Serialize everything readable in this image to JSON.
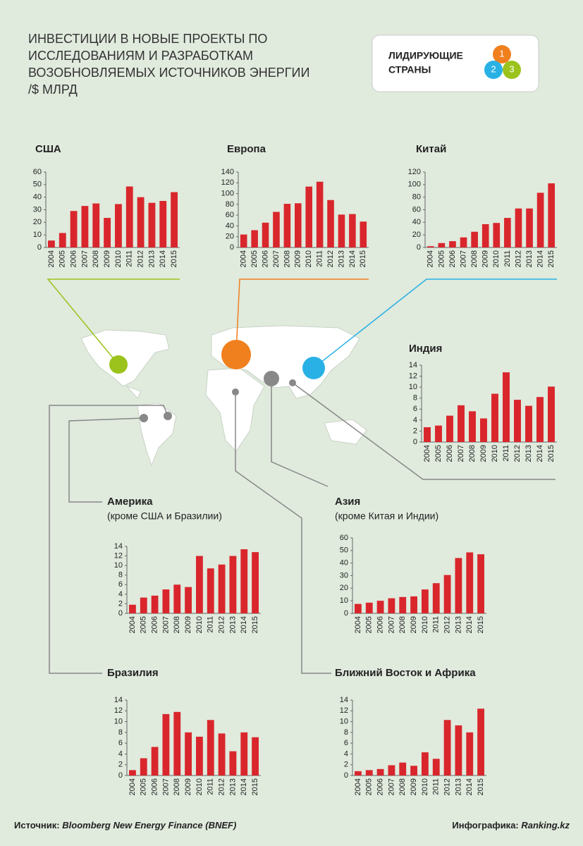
{
  "header": {
    "title_lines": [
      "ИНВЕСТИЦИИ В НОВЫЕ ПРОЕКТЫ ПО",
      "ИССЛЕДОВАНИЯМ И РАЗРАБОТКАМ",
      "ВОЗОБНОВЛЯЕМЫХ ИСТОЧНИКОВ ЭНЕРГИИ",
      "/$ МЛРД"
    ],
    "legend_lines": [
      "ЛИДИРУЮЩИЕ",
      "СТРАНЫ"
    ],
    "ranks": [
      "1",
      "2",
      "3"
    ]
  },
  "footer": {
    "source_label": "Источник:",
    "source": "Bloomberg New Energy Finance (BNEF)",
    "credit_label": "Инфографика:",
    "credit": "Ranking.kz"
  },
  "chart_data": [
    {
      "type": "bar",
      "title": "США",
      "categories": [
        "2004",
        "2005",
        "2006",
        "2007",
        "2008",
        "2009",
        "2010",
        "2011",
        "2012",
        "2013",
        "2014",
        "2015"
      ],
      "values": [
        5.5,
        11.5,
        29,
        33,
        35,
        23.5,
        34.5,
        48.5,
        40,
        35.5,
        37,
        44
      ],
      "color": "#d9262c",
      "ylim": [
        0,
        60
      ],
      "yticks": [
        0,
        10,
        20,
        30,
        40,
        50,
        60
      ]
    },
    {
      "type": "bar",
      "title": "Европа",
      "categories": [
        "2004",
        "2005",
        "2006",
        "2007",
        "2008",
        "2009",
        "2010",
        "2011",
        "2012",
        "2013",
        "2014",
        "2015"
      ],
      "values": [
        24,
        32,
        46,
        66,
        81,
        82,
        113,
        122,
        88,
        61,
        62,
        48
      ],
      "color": "#d9262c",
      "ylim": [
        0,
        140
      ],
      "yticks": [
        0,
        20,
        40,
        60,
        80,
        100,
        120,
        140
      ]
    },
    {
      "type": "bar",
      "title": "Китай",
      "categories": [
        "2004",
        "2005",
        "2006",
        "2007",
        "2008",
        "2009",
        "2010",
        "2011",
        "2012",
        "2013",
        "2014",
        "2015"
      ],
      "values": [
        2,
        7,
        10,
        16,
        25,
        37,
        39,
        47,
        62,
        62,
        87,
        102
      ],
      "color": "#d9262c",
      "ylim": [
        0,
        120
      ],
      "yticks": [
        0,
        20,
        40,
        60,
        80,
        100,
        120
      ]
    },
    {
      "type": "bar",
      "title": "Индия",
      "categories": [
        "2004",
        "2005",
        "2006",
        "2007",
        "2008",
        "2009",
        "2010",
        "2011",
        "2012",
        "2013",
        "2014",
        "2015"
      ],
      "values": [
        2.7,
        3,
        4.8,
        6.7,
        5.6,
        4.3,
        8.8,
        12.7,
        7.7,
        6.6,
        8.2,
        10.1
      ],
      "color": "#d9262c",
      "ylim": [
        0,
        14
      ],
      "yticks": [
        0,
        2,
        4,
        6,
        8,
        10,
        12,
        14
      ]
    },
    {
      "type": "bar",
      "title": "Америка",
      "subtitle": "(кроме США и Бразилии)",
      "categories": [
        "2004",
        "2005",
        "2006",
        "2007",
        "2008",
        "2009",
        "2010",
        "2011",
        "2012",
        "2013",
        "2014",
        "2015"
      ],
      "values": [
        1.8,
        3.3,
        3.7,
        5,
        6,
        5.5,
        12,
        9.4,
        10.2,
        12,
        13.4,
        12.8
      ],
      "color": "#d9262c",
      "ylim": [
        0,
        14
      ],
      "yticks": [
        0,
        2,
        4,
        6,
        8,
        10,
        12,
        14
      ]
    },
    {
      "type": "bar",
      "title": "Азия",
      "subtitle": "(кроме Китая и Индии)",
      "categories": [
        "2004",
        "2005",
        "2006",
        "2007",
        "2008",
        "2009",
        "2010",
        "2011",
        "2012",
        "2013",
        "2014",
        "2015"
      ],
      "values": [
        7.5,
        8.5,
        10,
        12,
        13,
        13.5,
        19,
        24,
        30.5,
        44,
        48.5,
        47
      ],
      "color": "#d9262c",
      "ylim": [
        0,
        60
      ],
      "yticks": [
        0,
        10,
        20,
        30,
        40,
        50,
        60
      ]
    },
    {
      "type": "bar",
      "title": "Бразилия",
      "categories": [
        "2004",
        "2005",
        "2006",
        "2007",
        "2008",
        "2009",
        "2010",
        "2011",
        "2012",
        "2013",
        "2014",
        "2015"
      ],
      "values": [
        1,
        3.2,
        5.3,
        11.4,
        11.8,
        8,
        7.2,
        10.3,
        7.8,
        4.5,
        8,
        7.1
      ],
      "color": "#d9262c",
      "ylim": [
        0,
        14
      ],
      "yticks": [
        0,
        2,
        4,
        6,
        8,
        10,
        12,
        14
      ]
    },
    {
      "type": "bar",
      "title": "Ближний Восток и Африка",
      "categories": [
        "2004",
        "2005",
        "2006",
        "2007",
        "2008",
        "2009",
        "2010",
        "2011",
        "2012",
        "2013",
        "2014",
        "2015"
      ],
      "values": [
        0.8,
        1,
        1.2,
        1.9,
        2.4,
        1.8,
        4.3,
        3.1,
        10.3,
        9.3,
        8,
        12.4
      ],
      "color": "#d9262c",
      "ylim": [
        0,
        14
      ],
      "yticks": [
        0,
        2,
        4,
        6,
        8,
        10,
        12,
        14
      ]
    }
  ]
}
